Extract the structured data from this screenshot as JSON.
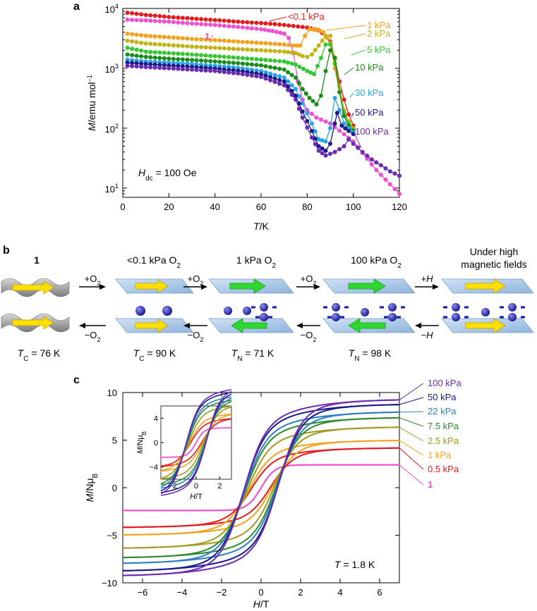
{
  "panel_labels": [
    "a",
    "b",
    "c"
  ],
  "colors": {
    "red": "#e41a1c",
    "magenta": "#ef4fd0",
    "orange": "#f4a21b",
    "olive": "#c3b31a",
    "green": "#32c832",
    "darkgreen": "#1a8c1a",
    "skyblue": "#2aa4e8",
    "navy": "#1a1a8c",
    "purple": "#6a2ab4",
    "olive2": "#a09a20",
    "blue22": "#2d7fc0",
    "green75": "#2e8b2e"
  },
  "chart_data": [
    {
      "type": "line",
      "panel": "a",
      "yscale": "log",
      "xlabel_var": "T",
      "xlabel_unit": "/K",
      "ylabel_var": "M",
      "ylabel_unit": "/emu mol",
      "ylabel_sup": "−1",
      "xlim": [
        0,
        120
      ],
      "ylim": [
        7,
        10000
      ],
      "xticks": [
        "0",
        "20",
        "40",
        "60",
        "80",
        "100",
        "120"
      ],
      "yticks": [
        {
          "base": "10",
          "exp": "1"
        },
        {
          "base": "10",
          "exp": "2"
        },
        {
          "base": "10",
          "exp": "3"
        },
        {
          "base": "10",
          "exp": "4"
        }
      ],
      "annotation_var": "H",
      "annotation_sub": "dc",
      "annotation_rest": " = 100 Oe",
      "series": [
        {
          "name": "<0.1 kPa",
          "color": "#e41a1c",
          "points": [
            [
              2,
              8500
            ],
            [
              10,
              7800
            ],
            [
              20,
              7200
            ],
            [
              30,
              6800
            ],
            [
              40,
              6400
            ],
            [
              50,
              6000
            ],
            [
              60,
              5700
            ],
            [
              70,
              5300
            ],
            [
              80,
              4800
            ],
            [
              85,
              4300
            ],
            [
              88,
              3500
            ],
            [
              90,
              2800
            ],
            [
              92,
              1500
            ],
            [
              94,
              600
            ],
            [
              96,
              300
            ],
            [
              98,
              170
            ],
            [
              100,
              110
            ]
          ]
        },
        {
          "name": "1",
          "color": "#ef4fd0",
          "points": [
            [
              2,
              6500
            ],
            [
              10,
              6300
            ],
            [
              20,
              6000
            ],
            [
              30,
              5600
            ],
            [
              40,
              5300
            ],
            [
              50,
              4900
            ],
            [
              60,
              4500
            ],
            [
              65,
              4200
            ],
            [
              70,
              3800
            ],
            [
              72,
              3200
            ],
            [
              74,
              1800
            ],
            [
              76,
              600
            ],
            [
              78,
              300
            ],
            [
              80,
              200
            ],
            [
              84,
              150
            ],
            [
              90,
              120
            ],
            [
              100,
              60
            ],
            [
              110,
              20
            ],
            [
              120,
              8
            ]
          ]
        },
        {
          "name": "1 kPa",
          "color": "#f4a21b",
          "points": [
            [
              2,
              3800
            ],
            [
              10,
              3500
            ],
            [
              20,
              3300
            ],
            [
              30,
              3100
            ],
            [
              40,
              2950
            ],
            [
              50,
              2800
            ],
            [
              60,
              2650
            ],
            [
              70,
              2500
            ],
            [
              74,
              2400
            ],
            [
              77,
              2400
            ],
            [
              79,
              3500
            ],
            [
              81,
              4500
            ],
            [
              84,
              4500
            ],
            [
              87,
              4000
            ],
            [
              90,
              2600
            ],
            [
              92,
              1000
            ],
            [
              94,
              400
            ],
            [
              96,
              190
            ],
            [
              98,
              120
            ],
            [
              100,
              100
            ]
          ]
        },
        {
          "name": "2 kPa",
          "color": "#c3b31a",
          "points": [
            [
              2,
              2900
            ],
            [
              10,
              2600
            ],
            [
              20,
              2450
            ],
            [
              30,
              2300
            ],
            [
              40,
              2200
            ],
            [
              50,
              2100
            ],
            [
              60,
              2000
            ],
            [
              70,
              1900
            ],
            [
              75,
              1800
            ],
            [
              78,
              1600
            ],
            [
              80,
              1550
            ],
            [
              82,
              1700
            ],
            [
              85,
              2400
            ],
            [
              88,
              3500
            ],
            [
              90,
              3500
            ],
            [
              92,
              1400
            ],
            [
              94,
              500
            ],
            [
              96,
              200
            ],
            [
              98,
              130
            ],
            [
              100,
              100
            ]
          ]
        },
        {
          "name": "5 kPa",
          "color": "#32c832",
          "points": [
            [
              2,
              2200
            ],
            [
              10,
              1900
            ],
            [
              20,
              1800
            ],
            [
              30,
              1700
            ],
            [
              40,
              1600
            ],
            [
              50,
              1500
            ],
            [
              60,
              1400
            ],
            [
              70,
              1300
            ],
            [
              75,
              1150
            ],
            [
              80,
              900
            ],
            [
              83,
              800
            ],
            [
              86,
              1500
            ],
            [
              88,
              2500
            ],
            [
              90,
              2500
            ],
            [
              92,
              1200
            ],
            [
              94,
              400
            ],
            [
              96,
              180
            ],
            [
              98,
              120
            ],
            [
              100,
              95
            ]
          ]
        },
        {
          "name": "10 kPa",
          "color": "#1a8c1a",
          "points": [
            [
              2,
              1700
            ],
            [
              10,
              1550
            ],
            [
              20,
              1450
            ],
            [
              30,
              1380
            ],
            [
              40,
              1300
            ],
            [
              50,
              1220
            ],
            [
              60,
              1120
            ],
            [
              70,
              950
            ],
            [
              75,
              700
            ],
            [
              78,
              450
            ],
            [
              81,
              320
            ],
            [
              84,
              250
            ],
            [
              86,
              350
            ],
            [
              88,
              900
            ],
            [
              90,
              2000
            ],
            [
              92,
              1500
            ],
            [
              94,
              400
            ],
            [
              96,
              160
            ],
            [
              98,
              110
            ],
            [
              100,
              90
            ]
          ]
        },
        {
          "name": "30 kPa",
          "color": "#2aa4e8",
          "points": [
            [
              2,
              1400
            ],
            [
              10,
              1300
            ],
            [
              20,
              1250
            ],
            [
              30,
              1180
            ],
            [
              40,
              1100
            ],
            [
              50,
              1020
            ],
            [
              60,
              900
            ],
            [
              70,
              700
            ],
            [
              75,
              450
            ],
            [
              78,
              260
            ],
            [
              82,
              120
            ],
            [
              85,
              65
            ],
            [
              88,
              60
            ],
            [
              90,
              100
            ],
            [
              92,
              320
            ],
            [
              94,
              200
            ],
            [
              96,
              120
            ],
            [
              98,
              100
            ],
            [
              100,
              85
            ]
          ]
        },
        {
          "name": "50 kPa",
          "color": "#1a1a8c",
          "points": [
            [
              2,
              1250
            ],
            [
              10,
              1180
            ],
            [
              20,
              1120
            ],
            [
              30,
              1060
            ],
            [
              40,
              990
            ],
            [
              50,
              910
            ],
            [
              60,
              800
            ],
            [
              70,
              600
            ],
            [
              75,
              350
            ],
            [
              78,
              190
            ],
            [
              82,
              90
            ],
            [
              85,
              50
            ],
            [
              88,
              42
            ],
            [
              90,
              55
            ],
            [
              92,
              120
            ],
            [
              93,
              180
            ],
            [
              95,
              110
            ],
            [
              98,
              90
            ],
            [
              100,
              80
            ]
          ]
        },
        {
          "name": "100 kPa",
          "color": "#6a2ab4",
          "points": [
            [
              2,
              1100
            ],
            [
              10,
              1050
            ],
            [
              20,
              1000
            ],
            [
              30,
              950
            ],
            [
              40,
              900
            ],
            [
              50,
              820
            ],
            [
              60,
              720
            ],
            [
              70,
              520
            ],
            [
              75,
              300
            ],
            [
              78,
              150
            ],
            [
              82,
              70
            ],
            [
              85,
              42
            ],
            [
              88,
              35
            ],
            [
              92,
              40
            ],
            [
              96,
              50
            ],
            [
              98,
              65
            ],
            [
              100,
              55
            ],
            [
              104,
              40
            ],
            [
              108,
              30
            ],
            [
              112,
              24
            ],
            [
              116,
              19
            ],
            [
              120,
              16
            ]
          ]
        }
      ]
    },
    {
      "type": "line",
      "panel": "c",
      "xlabel_var": "H",
      "xlabel_unit": "/T",
      "ylabel_var": "M",
      "ylabel_unit": "/Nμ",
      "ylabel_sub": "B",
      "xlim": [
        -7,
        7
      ],
      "ylim": [
        -10,
        10
      ],
      "xticks": [
        "−6",
        "−4",
        "−2",
        "0",
        "2",
        "4",
        "6"
      ],
      "yticks": [
        "−10",
        "−5",
        "0",
        "5",
        "10"
      ],
      "annotation_var": "T",
      "annotation_rest": " = 1.8   K",
      "series": [
        {
          "name": "100 kPa",
          "color": "#6a2ab4",
          "ms": 9.3,
          "hc": 0.9
        },
        {
          "name": "50 kPa",
          "color": "#1a1a8c",
          "ms": 8.8,
          "hc": 0.9
        },
        {
          "name": "22 kPa",
          "color": "#2d7fc0",
          "ms": 8.0,
          "hc": 0.85
        },
        {
          "name": "7.5 kPa",
          "color": "#2e8b2e",
          "ms": 7.4,
          "hc": 0.8
        },
        {
          "name": "2.5 kPa",
          "color": "#a09a20",
          "ms": 6.4,
          "hc": 0.7
        },
        {
          "name": "1 kPa",
          "color": "#f4a21b",
          "ms": 5.0,
          "hc": 0.6
        },
        {
          "name": "0.5 kPa",
          "color": "#e41a1c",
          "ms": 4.2,
          "hc": 0.5
        },
        {
          "name": "1",
          "color": "#ef4fd0",
          "ms": 2.4,
          "hc": 0.0
        }
      ],
      "inset": {
        "xlabel_var": "H",
        "xlabel_unit": "/T",
        "ylabel_var": "M",
        "ylabel_unit": "/Nμ",
        "ylabel_sub": "B",
        "xlim": [
          -3,
          3
        ],
        "ylim": [
          -6,
          6
        ],
        "xticks": [
          "−2",
          "0",
          "2"
        ],
        "yticks": [
          "−4",
          "0",
          "4"
        ]
      }
    }
  ],
  "scheme": {
    "top_labels": [
      {
        "id": "compound-1",
        "text": "1",
        "bold": true
      },
      {
        "id": "lowO2",
        "text": "<0.1 kPa O",
        "sub": "2"
      },
      {
        "id": "1kPaO2",
        "text": "1 kPa O",
        "sub": "2"
      },
      {
        "id": "100kPaO2",
        "text": "100 kPa O",
        "sub": "2"
      },
      {
        "id": "highfield-1",
        "text": "Under high"
      },
      {
        "id": "highfield-2",
        "text": "magnetic fields"
      }
    ],
    "arrow_labels": [
      {
        "top": "+O",
        "top_sub": "2",
        "bottom": "−O",
        "bottom_sub": "2"
      },
      {
        "top": "+O",
        "top_sub": "2",
        "bottom": "−O",
        "bottom_sub": "2"
      },
      {
        "top": "+O",
        "top_sub": "2",
        "bottom": "−O",
        "bottom_sub": "2"
      },
      {
        "top": "+H",
        "top_sub": "",
        "bottom": "−H",
        "bottom_sub": ""
      }
    ],
    "temps": [
      {
        "var": "T",
        "sub": "C",
        "rest": " = 76 K"
      },
      {
        "var": "T",
        "sub": "C",
        "rest": " = 90 K"
      },
      {
        "var": "T",
        "sub": "N",
        "rest": " = 71 K"
      },
      {
        "var": "T",
        "sub": "N",
        "rest": " = 98 K"
      }
    ]
  }
}
